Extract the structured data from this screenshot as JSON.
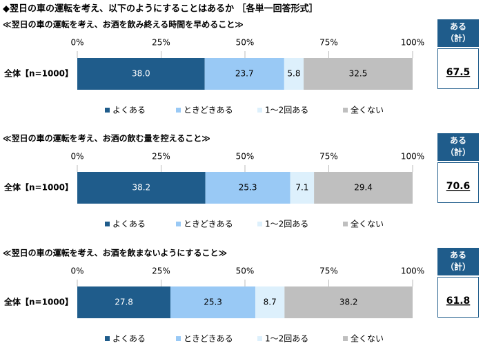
{
  "title": "◆翌日の車の運転を考え、以下のようにすることはあるか ［各単一回答形式］",
  "chart_data": [
    {
      "type": "stacked-bar",
      "subtitle": "≪翌日の車の運転を考え、お酒を飲み終える時間を早めること≫",
      "categories": [
        "全体【n=1000】"
      ],
      "series": [
        {
          "name": "よくある",
          "color": "#1f5c8b",
          "values": [
            38.0
          ],
          "value_labels": [
            "38.0"
          ]
        },
        {
          "name": "ときどきある",
          "color": "#99c9f5",
          "values": [
            23.7
          ]
        },
        {
          "name": "1～2回ある",
          "color": "#ddf0fc",
          "values": [
            5.8
          ]
        },
        {
          "name": "全くない",
          "color": "#bfbfbf",
          "values": [
            32.5
          ]
        }
      ],
      "xlim": [
        0,
        100
      ],
      "xticks": [
        {
          "value": 0,
          "label": "0%"
        },
        {
          "value": 25,
          "label": "25%"
        },
        {
          "value": 50,
          "label": "50%"
        },
        {
          "value": 75,
          "label": "75%"
        },
        {
          "value": 100,
          "label": "100%"
        }
      ],
      "total_title": [
        "ある",
        "（計）"
      ],
      "total": 67.5
    },
    {
      "type": "stacked-bar",
      "subtitle": "≪翌日の車の運転を考え、お酒の飲む量を控えること≫",
      "categories": [
        "全体【n=1000】"
      ],
      "series": [
        {
          "name": "よくある",
          "color": "#1f5c8b",
          "values": [
            38.2
          ]
        },
        {
          "name": "ときどきある",
          "color": "#99c9f5",
          "values": [
            25.3
          ]
        },
        {
          "name": "1～2回ある",
          "color": "#ddf0fc",
          "values": [
            7.1
          ]
        },
        {
          "name": "全くない",
          "color": "#bfbfbf",
          "values": [
            29.4
          ]
        }
      ],
      "xlim": [
        0,
        100
      ],
      "xticks": [
        {
          "value": 0,
          "label": "0%"
        },
        {
          "value": 25,
          "label": "25%"
        },
        {
          "value": 50,
          "label": "50%"
        },
        {
          "value": 75,
          "label": "75%"
        },
        {
          "value": 100,
          "label": "100%"
        }
      ],
      "total_title": [
        "ある",
        "（計）"
      ],
      "total": 70.6
    },
    {
      "type": "stacked-bar",
      "subtitle": "≪翌日の車の運転を考え、お酒を飲まないようにすること≫",
      "categories": [
        "全体【n=1000】"
      ],
      "series": [
        {
          "name": "よくある",
          "color": "#1f5c8b",
          "values": [
            27.8
          ]
        },
        {
          "name": "ときどきある",
          "color": "#99c9f5",
          "values": [
            25.3
          ]
        },
        {
          "name": "1～2回ある",
          "color": "#ddf0fc",
          "values": [
            8.7
          ]
        },
        {
          "name": "全くない",
          "color": "#bfbfbf",
          "values": [
            38.2
          ]
        }
      ],
      "xlim": [
        0,
        100
      ],
      "xticks": [
        {
          "value": 0,
          "label": "0%"
        },
        {
          "value": 25,
          "label": "25%"
        },
        {
          "value": 50,
          "label": "50%"
        },
        {
          "value": 75,
          "label": "75%"
        },
        {
          "value": 100,
          "label": "100%"
        }
      ],
      "total_title": [
        "ある",
        "（計）"
      ],
      "total": 61.8
    }
  ]
}
